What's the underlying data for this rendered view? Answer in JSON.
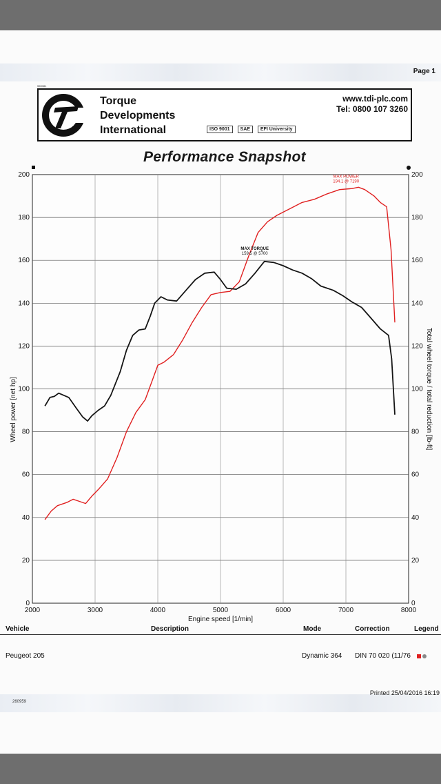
{
  "page_label": "Page 1",
  "header": {
    "ref": "550081",
    "company_line1": "Torque",
    "company_line2": "Developments",
    "company_line3": "International",
    "url": "www.tdi-plc.com",
    "tel": "Tel: 0800 107 3260",
    "certs": [
      "ISO 9001",
      "SAE",
      "EFI University"
    ]
  },
  "title": "Performance Snapshot",
  "chart_data": {
    "type": "line",
    "title": "Performance Snapshot",
    "xlabel": "Engine speed [1/min]",
    "ylabel_left": "Wheel power [net hp]",
    "ylabel_right": "Total wheel torque / total reduction [lb-ft]",
    "xlim": [
      2000,
      8000
    ],
    "ylim": [
      0,
      200
    ],
    "x_ticks": [
      2000,
      3000,
      4000,
      5000,
      6000,
      7000,
      8000
    ],
    "y_ticks": [
      0,
      20,
      40,
      60,
      80,
      100,
      120,
      140,
      160,
      180,
      200
    ],
    "grid": true,
    "series": [
      {
        "color": "#e02020",
        "axis": "left",
        "points": [
          [
            2200,
            39
          ],
          [
            2300,
            43
          ],
          [
            2400,
            45.5
          ],
          [
            2550,
            47
          ],
          [
            2650,
            48.5
          ],
          [
            2750,
            47.5
          ],
          [
            2850,
            46.5
          ],
          [
            2950,
            50
          ],
          [
            3050,
            53
          ],
          [
            3200,
            58
          ],
          [
            3350,
            68
          ],
          [
            3500,
            80
          ],
          [
            3650,
            89
          ],
          [
            3800,
            95
          ],
          [
            3900,
            103
          ],
          [
            4000,
            111
          ],
          [
            4100,
            112.5
          ],
          [
            4250,
            116
          ],
          [
            4400,
            123
          ],
          [
            4550,
            131
          ],
          [
            4700,
            138
          ],
          [
            4850,
            144
          ],
          [
            5000,
            145
          ],
          [
            5150,
            145.5
          ],
          [
            5300,
            150
          ],
          [
            5450,
            162
          ],
          [
            5600,
            173
          ],
          [
            5750,
            178
          ],
          [
            5900,
            181
          ],
          [
            6100,
            184
          ],
          [
            6300,
            187
          ],
          [
            6500,
            188.5
          ],
          [
            6700,
            191
          ],
          [
            6900,
            193
          ],
          [
            7100,
            193.5
          ],
          [
            7200,
            194.1
          ],
          [
            7300,
            193
          ],
          [
            7450,
            190
          ],
          [
            7550,
            187
          ],
          [
            7650,
            185
          ],
          [
            7720,
            165
          ],
          [
            7780,
            131
          ]
        ]
      },
      {
        "color": "#151515",
        "axis": "right",
        "points": [
          [
            2200,
            92
          ],
          [
            2280,
            96
          ],
          [
            2350,
            96.5
          ],
          [
            2420,
            98
          ],
          [
            2500,
            97
          ],
          [
            2580,
            96
          ],
          [
            2700,
            91
          ],
          [
            2800,
            87
          ],
          [
            2880,
            85
          ],
          [
            2950,
            87.5
          ],
          [
            3050,
            90
          ],
          [
            3150,
            92
          ],
          [
            3250,
            97
          ],
          [
            3400,
            108
          ],
          [
            3500,
            118
          ],
          [
            3600,
            125
          ],
          [
            3700,
            127.5
          ],
          [
            3800,
            128
          ],
          [
            3880,
            134
          ],
          [
            3950,
            140
          ],
          [
            4050,
            143
          ],
          [
            4150,
            141.5
          ],
          [
            4300,
            141
          ],
          [
            4450,
            146
          ],
          [
            4600,
            151
          ],
          [
            4750,
            154
          ],
          [
            4900,
            154.5
          ],
          [
            5000,
            151
          ],
          [
            5100,
            147
          ],
          [
            5250,
            146.5
          ],
          [
            5400,
            149
          ],
          [
            5550,
            154
          ],
          [
            5700,
            159.5
          ],
          [
            5850,
            159
          ],
          [
            6000,
            157.5
          ],
          [
            6150,
            155.5
          ],
          [
            6300,
            154
          ],
          [
            6450,
            151.5
          ],
          [
            6600,
            148
          ],
          [
            6800,
            146
          ],
          [
            6950,
            143.5
          ],
          [
            7100,
            140.5
          ],
          [
            7250,
            138
          ],
          [
            7400,
            133
          ],
          [
            7550,
            128
          ],
          [
            7680,
            125
          ],
          [
            7730,
            114
          ],
          [
            7780,
            88
          ]
        ]
      }
    ],
    "annotations": [
      {
        "text": "MAX POWER",
        "color": "#e02020"
      },
      {
        "text": "194.1 @ 7190",
        "color": "#e02020"
      },
      {
        "text": "MAX TORQUE",
        "color": "#111111"
      },
      {
        "text": "159.5 @ 5700",
        "color": "#111111"
      }
    ]
  },
  "table": {
    "headers": {
      "vehicle": "Vehicle",
      "description": "Description",
      "mode": "Mode",
      "correction": "Correction",
      "legend": "Legend"
    },
    "row": {
      "vehicle": "Peugeot 205",
      "mode": "Dynamic 364",
      "correction": "DIN 70 020 (11/76"
    },
    "legend_colors": [
      "#e02020",
      "#888888"
    ]
  },
  "printed": "Printed 25/04/2016 16:19",
  "code": "260959"
}
